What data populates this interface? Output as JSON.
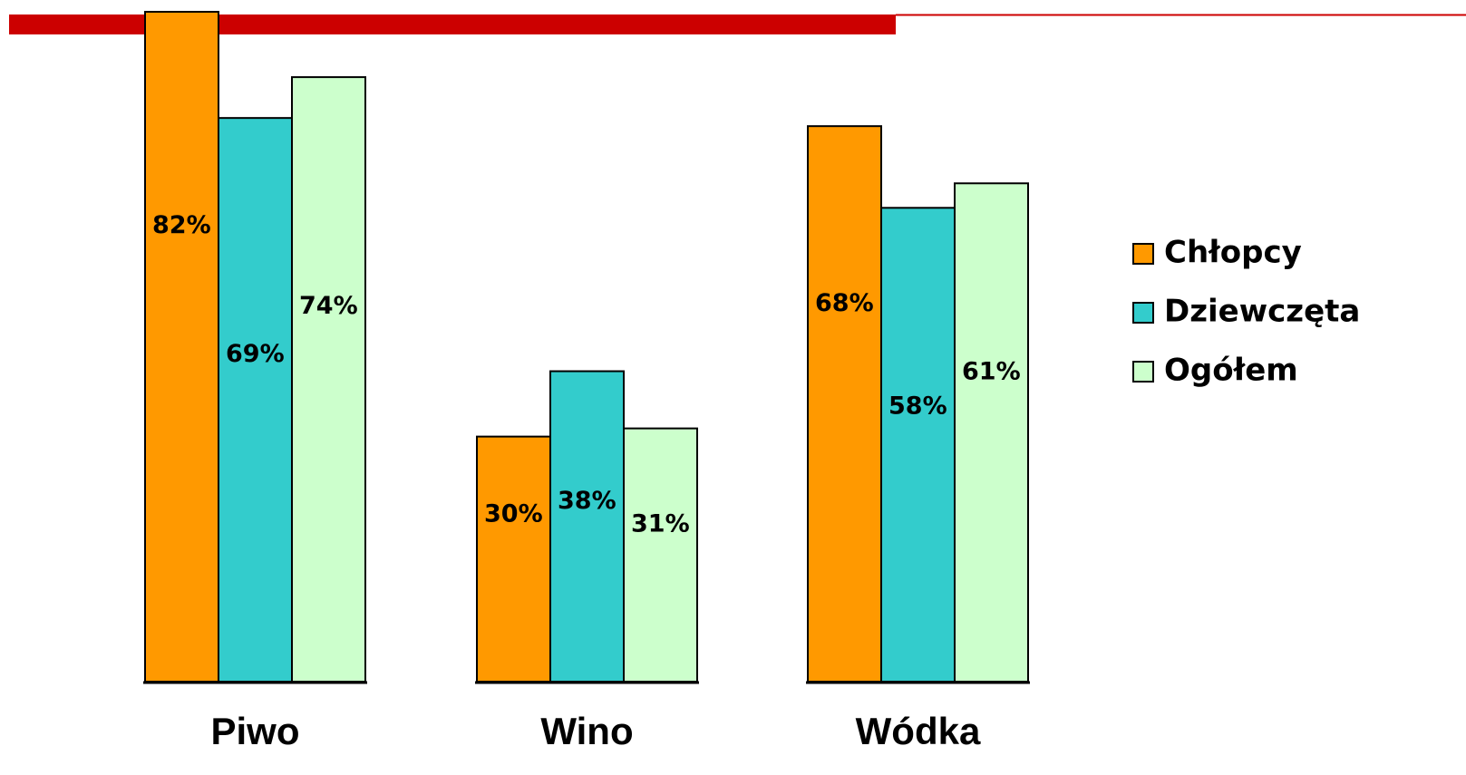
{
  "chart_data": {
    "type": "bar",
    "categories": [
      "Piwo",
      "Wino",
      "Wódka"
    ],
    "series": [
      {
        "name": "Chłopcy",
        "color": "#ff9900",
        "values": [
          82,
          30,
          68
        ],
        "value_labels": [
          "82%",
          "30%",
          "68%"
        ]
      },
      {
        "name": "Dziewczęta",
        "color": "#33cccc",
        "values": [
          69,
          38,
          58
        ],
        "value_labels": [
          "69%",
          "38%",
          "58%"
        ]
      },
      {
        "name": "Ogółem",
        "color": "#ccffcc",
        "values": [
          74,
          31,
          61
        ],
        "value_labels": [
          "74%",
          "31%",
          "61%"
        ]
      }
    ],
    "legend": "right"
  }
}
